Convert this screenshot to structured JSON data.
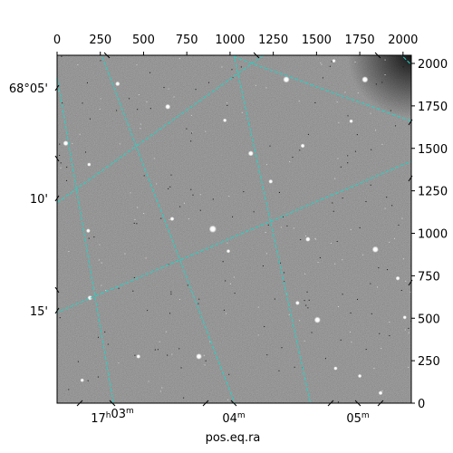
{
  "chart_data": {
    "type": "image",
    "top_x_ticks": [
      0,
      250,
      500,
      750,
      1000,
      1250,
      1500,
      1750,
      2000
    ],
    "right_y_ticks": [
      0,
      250,
      500,
      750,
      1000,
      1250,
      1500,
      1750,
      2000
    ],
    "pixel_range": {
      "x": [
        0,
        2048
      ],
      "y": [
        0,
        2048
      ]
    },
    "dec_ticks": [
      {
        "label": "68°05'",
        "offset_arcmin": 0
      },
      {
        "label": "10'",
        "offset_arcmin": 5
      },
      {
        "label": "15'",
        "offset_arcmin": 10
      }
    ],
    "ra_ticks": [
      {
        "hours": "17",
        "hours_sup": "h",
        "minutes": "03",
        "minutes_sup": "m"
      },
      {
        "hours": "",
        "hours_sup": "",
        "minutes": "04",
        "minutes_sup": "m"
      },
      {
        "hours": "",
        "hours_sup": "",
        "minutes": "05",
        "minutes_sup": "m"
      }
    ],
    "xlabel": "pos.eq.ra",
    "grid": true,
    "grid_color": "#22d3c5",
    "image_colormap": "gray",
    "bright_sources": [
      {
        "x": 1325,
        "y": 1905,
        "mag": 2
      },
      {
        "x": 1780,
        "y": 1905,
        "mag": 2
      },
      {
        "x": 640,
        "y": 1745,
        "mag": 1.5
      },
      {
        "x": 1120,
        "y": 1470,
        "mag": 1.5
      },
      {
        "x": 50,
        "y": 1530,
        "mag": 1.5
      },
      {
        "x": 900,
        "y": 1025,
        "mag": 2.5
      },
      {
        "x": 1450,
        "y": 965,
        "mag": 1.3
      },
      {
        "x": 1840,
        "y": 905,
        "mag": 2
      },
      {
        "x": 190,
        "y": 620,
        "mag": 1.3
      },
      {
        "x": 1505,
        "y": 490,
        "mag": 2
      },
      {
        "x": 820,
        "y": 275,
        "mag": 1.8
      },
      {
        "x": 1235,
        "y": 1305,
        "mag": 1
      },
      {
        "x": 180,
        "y": 1015,
        "mag": 1
      },
      {
        "x": 665,
        "y": 1085,
        "mag": 1
      },
      {
        "x": 1420,
        "y": 1515,
        "mag": 1
      },
      {
        "x": 1970,
        "y": 735,
        "mag": 1
      },
      {
        "x": 1390,
        "y": 590,
        "mag": 1
      },
      {
        "x": 470,
        "y": 275,
        "mag": 1
      },
      {
        "x": 1870,
        "y": 60,
        "mag": 1
      },
      {
        "x": 350,
        "y": 1880,
        "mag": 1.2
      },
      {
        "x": 1600,
        "y": 2015,
        "mag": 0.8
      },
      {
        "x": 185,
        "y": 1405,
        "mag": 0.8
      },
      {
        "x": 990,
        "y": 895,
        "mag": 0.8
      },
      {
        "x": 2010,
        "y": 505,
        "mag": 0.8
      },
      {
        "x": 1750,
        "y": 160,
        "mag": 0.8
      },
      {
        "x": 145,
        "y": 135,
        "mag": 0.8
      },
      {
        "x": 1610,
        "y": 205,
        "mag": 0.8
      },
      {
        "x": 970,
        "y": 1665,
        "mag": 0.8
      },
      {
        "x": 1700,
        "y": 1660,
        "mag": 0.8
      }
    ],
    "ra_lines": [
      {
        "x1": -10,
        "y1": 1980,
        "x2": 330,
        "y2": -25
      },
      {
        "x1": 1020,
        "y1": 2060,
        "x2": 1470,
        "y2": -25
      },
      {
        "x1": 2050,
        "y1": 1750,
        "x2": 2050,
        "y2": 1750
      }
    ],
    "grid_lines": [
      {
        "x1": 260,
        "y1": 2040,
        "x2": 1030,
        "y2": -10
      },
      {
        "x1": 1020,
        "y1": 2040,
        "x2": 2050,
        "y2": 1660
      },
      {
        "x1": 0,
        "y1": 1180,
        "x2": 1210,
        "y2": 2060
      },
      {
        "x1": -10,
        "y1": 530,
        "x2": 2050,
        "y2": 1425
      }
    ]
  }
}
